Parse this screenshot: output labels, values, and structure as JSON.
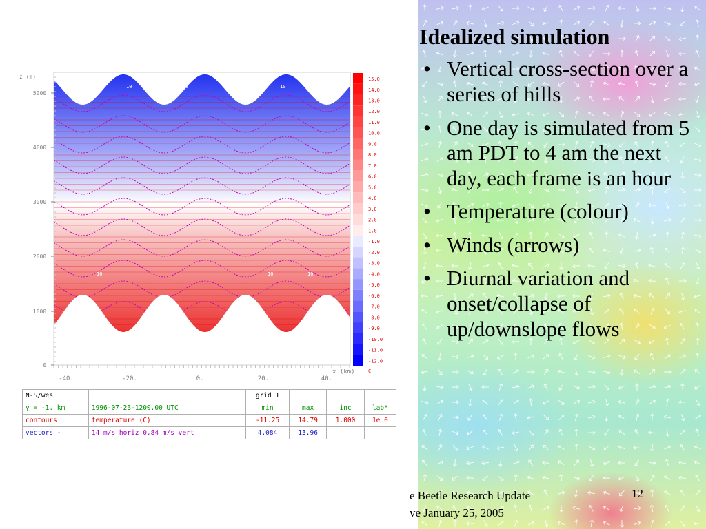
{
  "slide": {
    "heading": "Idealized simulation",
    "bullets": [
      "Vertical cross-section over a series of hills",
      "One day is simulated from 5 am PDT to 4 am the next day, each frame is an hour",
      "Temperature (colour)",
      "Winds (arrows)",
      "Diurnal variation and onset/collapse of up/downslope flows"
    ],
    "footer_line1": "e Beetle Research Update",
    "footer_line2": "ve January 25, 2005",
    "page_number": "12"
  },
  "plot": {
    "y_axis_label": "z (m)",
    "x_axis_label": "x (km)",
    "y_ticks": [
      "0.",
      "1000.",
      "2000.",
      "3000.",
      "4000.",
      "5000."
    ],
    "x_ticks": [
      "-40.",
      "-20.",
      "0.",
      "20.",
      "40."
    ],
    "colorbar_labels": [
      "15.0",
      "14.0",
      "13.0",
      "12.0",
      "11.0",
      "10.0",
      "9.0",
      "8.0",
      "7.0",
      "6.0",
      "5.0",
      "4.0",
      "3.0",
      "2.0",
      "1.0",
      "-1.0",
      "-2.0",
      "-3.0",
      "-4.0",
      "-5.0",
      "-6.0",
      "-7.0",
      "-8.0",
      "-9.0",
      "-10.0",
      "-11.0",
      "-12.0"
    ],
    "colorbar_unit": "C",
    "contour_labels_top": [
      "10",
      "10",
      "10"
    ],
    "contour_labels_mid": [
      "10",
      "10",
      "10"
    ],
    "contour_labels_bottom": [
      "11",
      "11"
    ],
    "colors": {
      "warm": "#ff0000",
      "cold": "#0000ff",
      "neutral": "#ffffff",
      "contour_red": "#e00000",
      "contour_purple": "#c000c0"
    }
  },
  "info_table": {
    "r1": [
      "N-S/wes",
      "",
      "grid 1",
      "",
      "",
      ""
    ],
    "r2": [
      "y =    -1. km",
      "1996-07-23-1200.00 UTC",
      "min",
      "max",
      "inc",
      "lab*"
    ],
    "r3": [
      "contours",
      "temperature (C)",
      "-11.25",
      "14.79",
      "1.000",
      "1e 0"
    ],
    "r4": [
      "vectors    -",
      "14 m/s horiz 0.84 m/s vert",
      "4.084",
      "13.96",
      "",
      ""
    ]
  }
}
